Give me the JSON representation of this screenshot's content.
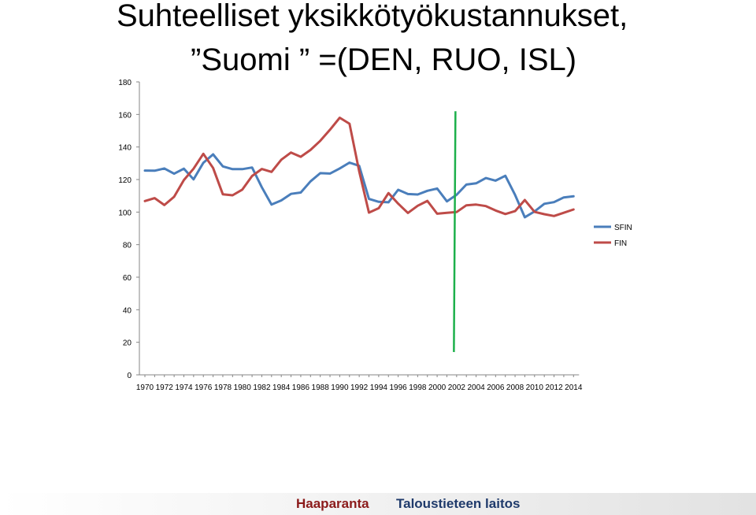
{
  "chart_data": {
    "type": "line",
    "title_line1": "Suhteelliset yksikkötyökustannukset,",
    "title_line2": "”Suomi ” =(DEN, RUO, ISL)",
    "ylim": [
      0,
      180
    ],
    "yticks": [
      0,
      20,
      40,
      60,
      80,
      100,
      120,
      140,
      160,
      180
    ],
    "grid": false,
    "legend_position": "right",
    "x": [
      1970,
      1971,
      1972,
      1973,
      1974,
      1975,
      1976,
      1977,
      1978,
      1979,
      1980,
      1981,
      1982,
      1983,
      1984,
      1985,
      1986,
      1987,
      1988,
      1989,
      1990,
      1991,
      1992,
      1993,
      1994,
      1995,
      1996,
      1997,
      1998,
      1999,
      2000,
      2001,
      2002,
      2003,
      2004,
      2005,
      2006,
      2007,
      2008,
      2009,
      2010,
      2011,
      2012,
      2013,
      2014
    ],
    "xtick_labels": [
      "1970",
      "1972",
      "1974",
      "1976",
      "1978",
      "1980",
      "1982",
      "1984",
      "1986",
      "1988",
      "1990",
      "1992",
      "1994",
      "1996",
      "1998",
      "2000",
      "2002",
      "2004",
      "2006",
      "2008",
      "2010",
      "2012",
      "2014"
    ],
    "series": [
      {
        "name": "SFIN",
        "color": "#4a7ebb",
        "values": [
          125.5,
          125.4,
          126.8,
          123.6,
          126.7,
          120.1,
          130.3,
          135.5,
          128.1,
          126.4,
          126.4,
          127.4,
          115.3,
          104.6,
          107.2,
          111.2,
          112.0,
          118.9,
          123.9,
          123.7,
          126.8,
          130.4,
          128.4,
          108.1,
          106.3,
          106.0,
          113.7,
          111.1,
          110.8,
          113.1,
          114.5,
          106.6,
          110.6,
          116.9,
          117.7,
          120.9,
          119.3,
          122.3,
          110.5,
          96.8,
          100.4,
          105.1,
          106.1,
          109.0,
          109.7
        ]
      },
      {
        "name": "FIN",
        "color": "#be4b48",
        "values": [
          106.8,
          108.6,
          104.3,
          109.4,
          119.7,
          126.7,
          135.8,
          127.1,
          110.9,
          110.3,
          113.8,
          122.2,
          126.5,
          124.7,
          132.2,
          136.6,
          134.0,
          138.2,
          143.8,
          150.6,
          158.0,
          154.3,
          125.1,
          99.7,
          102.4,
          111.7,
          105.2,
          99.5,
          103.9,
          106.9,
          99.0,
          99.6,
          100.0,
          104.2,
          104.6,
          103.7,
          101.0,
          98.8,
          100.6,
          107.4,
          100.1,
          98.7,
          97.6,
          99.6,
          101.6
        ]
      }
    ],
    "annotation": {
      "type": "vertical-line",
      "x": 2001.8,
      "y_from": 14,
      "y_to": 162,
      "color": "#1db04b"
    }
  },
  "footer": {
    "left": "Haaparanta",
    "right": "Taloustieteen laitos"
  }
}
